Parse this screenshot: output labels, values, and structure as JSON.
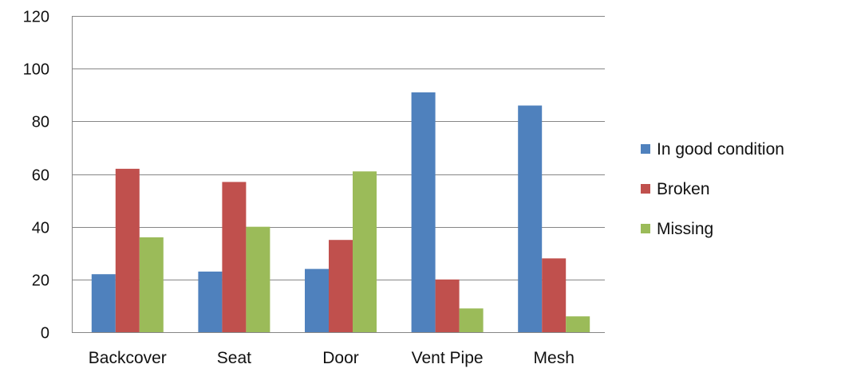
{
  "chart_data": {
    "type": "bar",
    "title": "",
    "xlabel": "",
    "ylabel": "",
    "categories": [
      "Backcover",
      "Seat",
      "Door",
      "Vent Pipe",
      "Mesh"
    ],
    "series": [
      {
        "name": "In good condition",
        "values": [
          22,
          23,
          24,
          91,
          86
        ],
        "color": "#4F81BD"
      },
      {
        "name": "Broken",
        "values": [
          62,
          57,
          35,
          20,
          28
        ],
        "color": "#C0504D"
      },
      {
        "name": "Missing",
        "values": [
          36,
          40,
          61,
          9,
          6
        ],
        "color": "#9BBB59"
      }
    ],
    "ylim": [
      0,
      120
    ],
    "yticks": [
      0,
      20,
      40,
      60,
      80,
      100,
      120
    ],
    "grid": true,
    "legend_position": "right"
  }
}
